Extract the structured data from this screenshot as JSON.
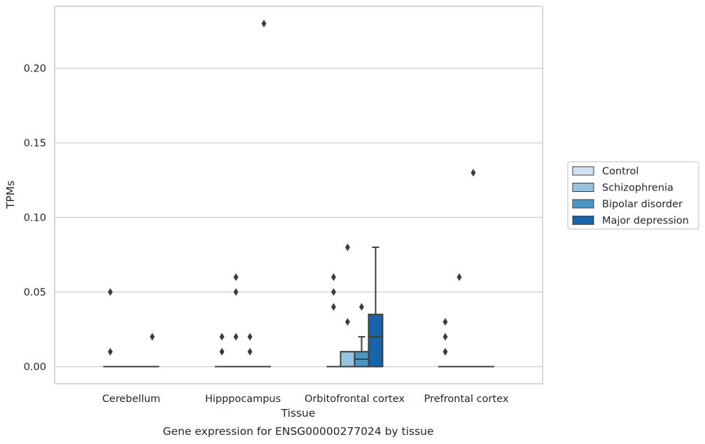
{
  "chart_data": {
    "type": "box",
    "title": "",
    "caption": "Gene expression for ENSG00000277024 by tissue",
    "xlabel": "Tissue",
    "ylabel": "TPMs",
    "ylim": [
      -0.011,
      0.243
    ],
    "yticks": [
      0.0,
      0.05,
      0.1,
      0.15,
      0.2
    ],
    "ytick_labels": [
      "0.00",
      "0.05",
      "0.10",
      "0.15",
      "0.20"
    ],
    "grid": "horizontal",
    "legend_position": "right",
    "categories": [
      "Cerebellum",
      "Hipppocampus",
      "Orbitofrontal cortex",
      "Prefrontal cortex"
    ],
    "series": [
      {
        "name": "Control",
        "color": "#d0e1f2",
        "boxes": [
          {
            "q1": 0,
            "median": 0,
            "q3": 0,
            "whisker_low": 0,
            "whisker_high": 0,
            "outliers": [
              0.01,
              0.05
            ]
          },
          {
            "q1": 0,
            "median": 0,
            "q3": 0,
            "whisker_low": 0,
            "whisker_high": 0,
            "outliers": [
              0.01,
              0.02
            ]
          },
          {
            "q1": 0,
            "median": 0,
            "q3": 0,
            "whisker_low": 0,
            "whisker_high": 0,
            "outliers": [
              0.04,
              0.05,
              0.06
            ]
          },
          {
            "q1": 0,
            "median": 0,
            "q3": 0,
            "whisker_low": 0,
            "whisker_high": 0,
            "outliers": [
              0.01,
              0.02,
              0.03
            ]
          }
        ]
      },
      {
        "name": "Schizophrenia",
        "color": "#94c4df",
        "boxes": [
          {
            "q1": 0,
            "median": 0,
            "q3": 0,
            "whisker_low": 0,
            "whisker_high": 0,
            "outliers": []
          },
          {
            "q1": 0,
            "median": 0,
            "q3": 0,
            "whisker_low": 0,
            "whisker_high": 0,
            "outliers": [
              0.02,
              0.05,
              0.06
            ]
          },
          {
            "q1": 0,
            "median": 0,
            "q3": 0.01,
            "whisker_low": 0,
            "whisker_high": 0.01,
            "outliers": [
              0.03,
              0.08
            ]
          },
          {
            "q1": 0,
            "median": 0,
            "q3": 0,
            "whisker_low": 0,
            "whisker_high": 0,
            "outliers": [
              0.06
            ]
          }
        ]
      },
      {
        "name": "Bipolar disorder",
        "color": "#4a98c9",
        "boxes": [
          {
            "q1": 0,
            "median": 0,
            "q3": 0,
            "whisker_low": 0,
            "whisker_high": 0,
            "outliers": []
          },
          {
            "q1": 0,
            "median": 0,
            "q3": 0,
            "whisker_low": 0,
            "whisker_high": 0,
            "outliers": [
              0.01,
              0.02
            ]
          },
          {
            "q1": 0,
            "median": 0.005,
            "q3": 0.01,
            "whisker_low": 0,
            "whisker_high": 0.02,
            "outliers": [
              0.04
            ]
          },
          {
            "q1": 0,
            "median": 0,
            "q3": 0,
            "whisker_low": 0,
            "whisker_high": 0,
            "outliers": [
              0.13
            ]
          }
        ]
      },
      {
        "name": "Major depression",
        "color": "#1764ab",
        "boxes": [
          {
            "q1": 0,
            "median": 0,
            "q3": 0,
            "whisker_low": 0,
            "whisker_high": 0,
            "outliers": [
              0.02
            ]
          },
          {
            "q1": 0,
            "median": 0,
            "q3": 0,
            "whisker_low": 0,
            "whisker_high": 0,
            "outliers": [
              0.23
            ]
          },
          {
            "q1": 0,
            "median": 0.02,
            "q3": 0.035,
            "whisker_low": 0,
            "whisker_high": 0.08,
            "outliers": []
          },
          {
            "q1": 0,
            "median": 0,
            "q3": 0,
            "whisker_low": 0,
            "whisker_high": 0,
            "outliers": []
          }
        ]
      }
    ]
  },
  "colors": {
    "grid": "#cccccc",
    "frame": "#cccccc",
    "box_edge": "#3d3d3d",
    "text": "#262626"
  }
}
